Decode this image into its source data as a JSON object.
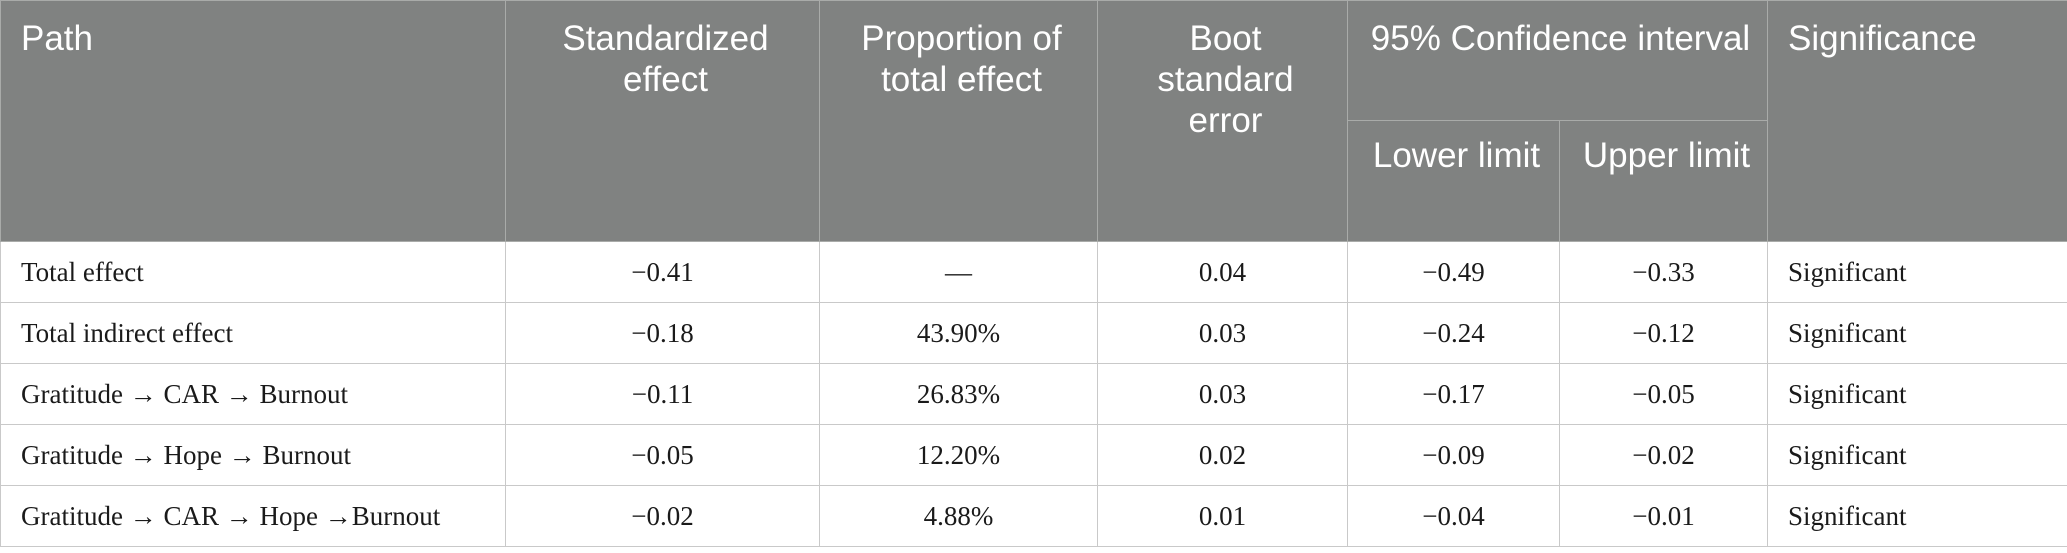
{
  "table": {
    "headers": {
      "path": "Path",
      "standardized_effect": "Standardized effect",
      "proportion": "Proportion of total effect",
      "boot_se": "Boot standard error",
      "ci": "95% Confidence interval",
      "lower": "Lower limit",
      "upper": "Upper limit",
      "significance": "Significance"
    },
    "rows": [
      {
        "path": "Total effect",
        "effect": "−0.41",
        "proportion": "—",
        "se": "0.04",
        "lower": "−0.49",
        "upper": "−0.33",
        "significance": "Significant"
      },
      {
        "path": "Total indirect effect",
        "effect": "−0.18",
        "proportion": "43.90%",
        "se": "0.03",
        "lower": "−0.24",
        "upper": "−0.12",
        "significance": "Significant"
      },
      {
        "path": "Gratitude → CAR → Burnout",
        "effect": "−0.11",
        "proportion": "26.83%",
        "se": "0.03",
        "lower": "−0.17",
        "upper": "−0.05",
        "significance": "Significant"
      },
      {
        "path": "Gratitude → Hope → Burnout",
        "effect": "−0.05",
        "proportion": "12.20%",
        "se": "0.02",
        "lower": "−0.09",
        "upper": "−0.02",
        "significance": "Significant"
      },
      {
        "path": "Gratitude → CAR → Hope →Burnout",
        "effect": "−0.02",
        "proportion": "4.88%",
        "se": "0.01",
        "lower": "−0.04",
        "upper": "−0.01",
        "significance": "Significant"
      }
    ]
  }
}
